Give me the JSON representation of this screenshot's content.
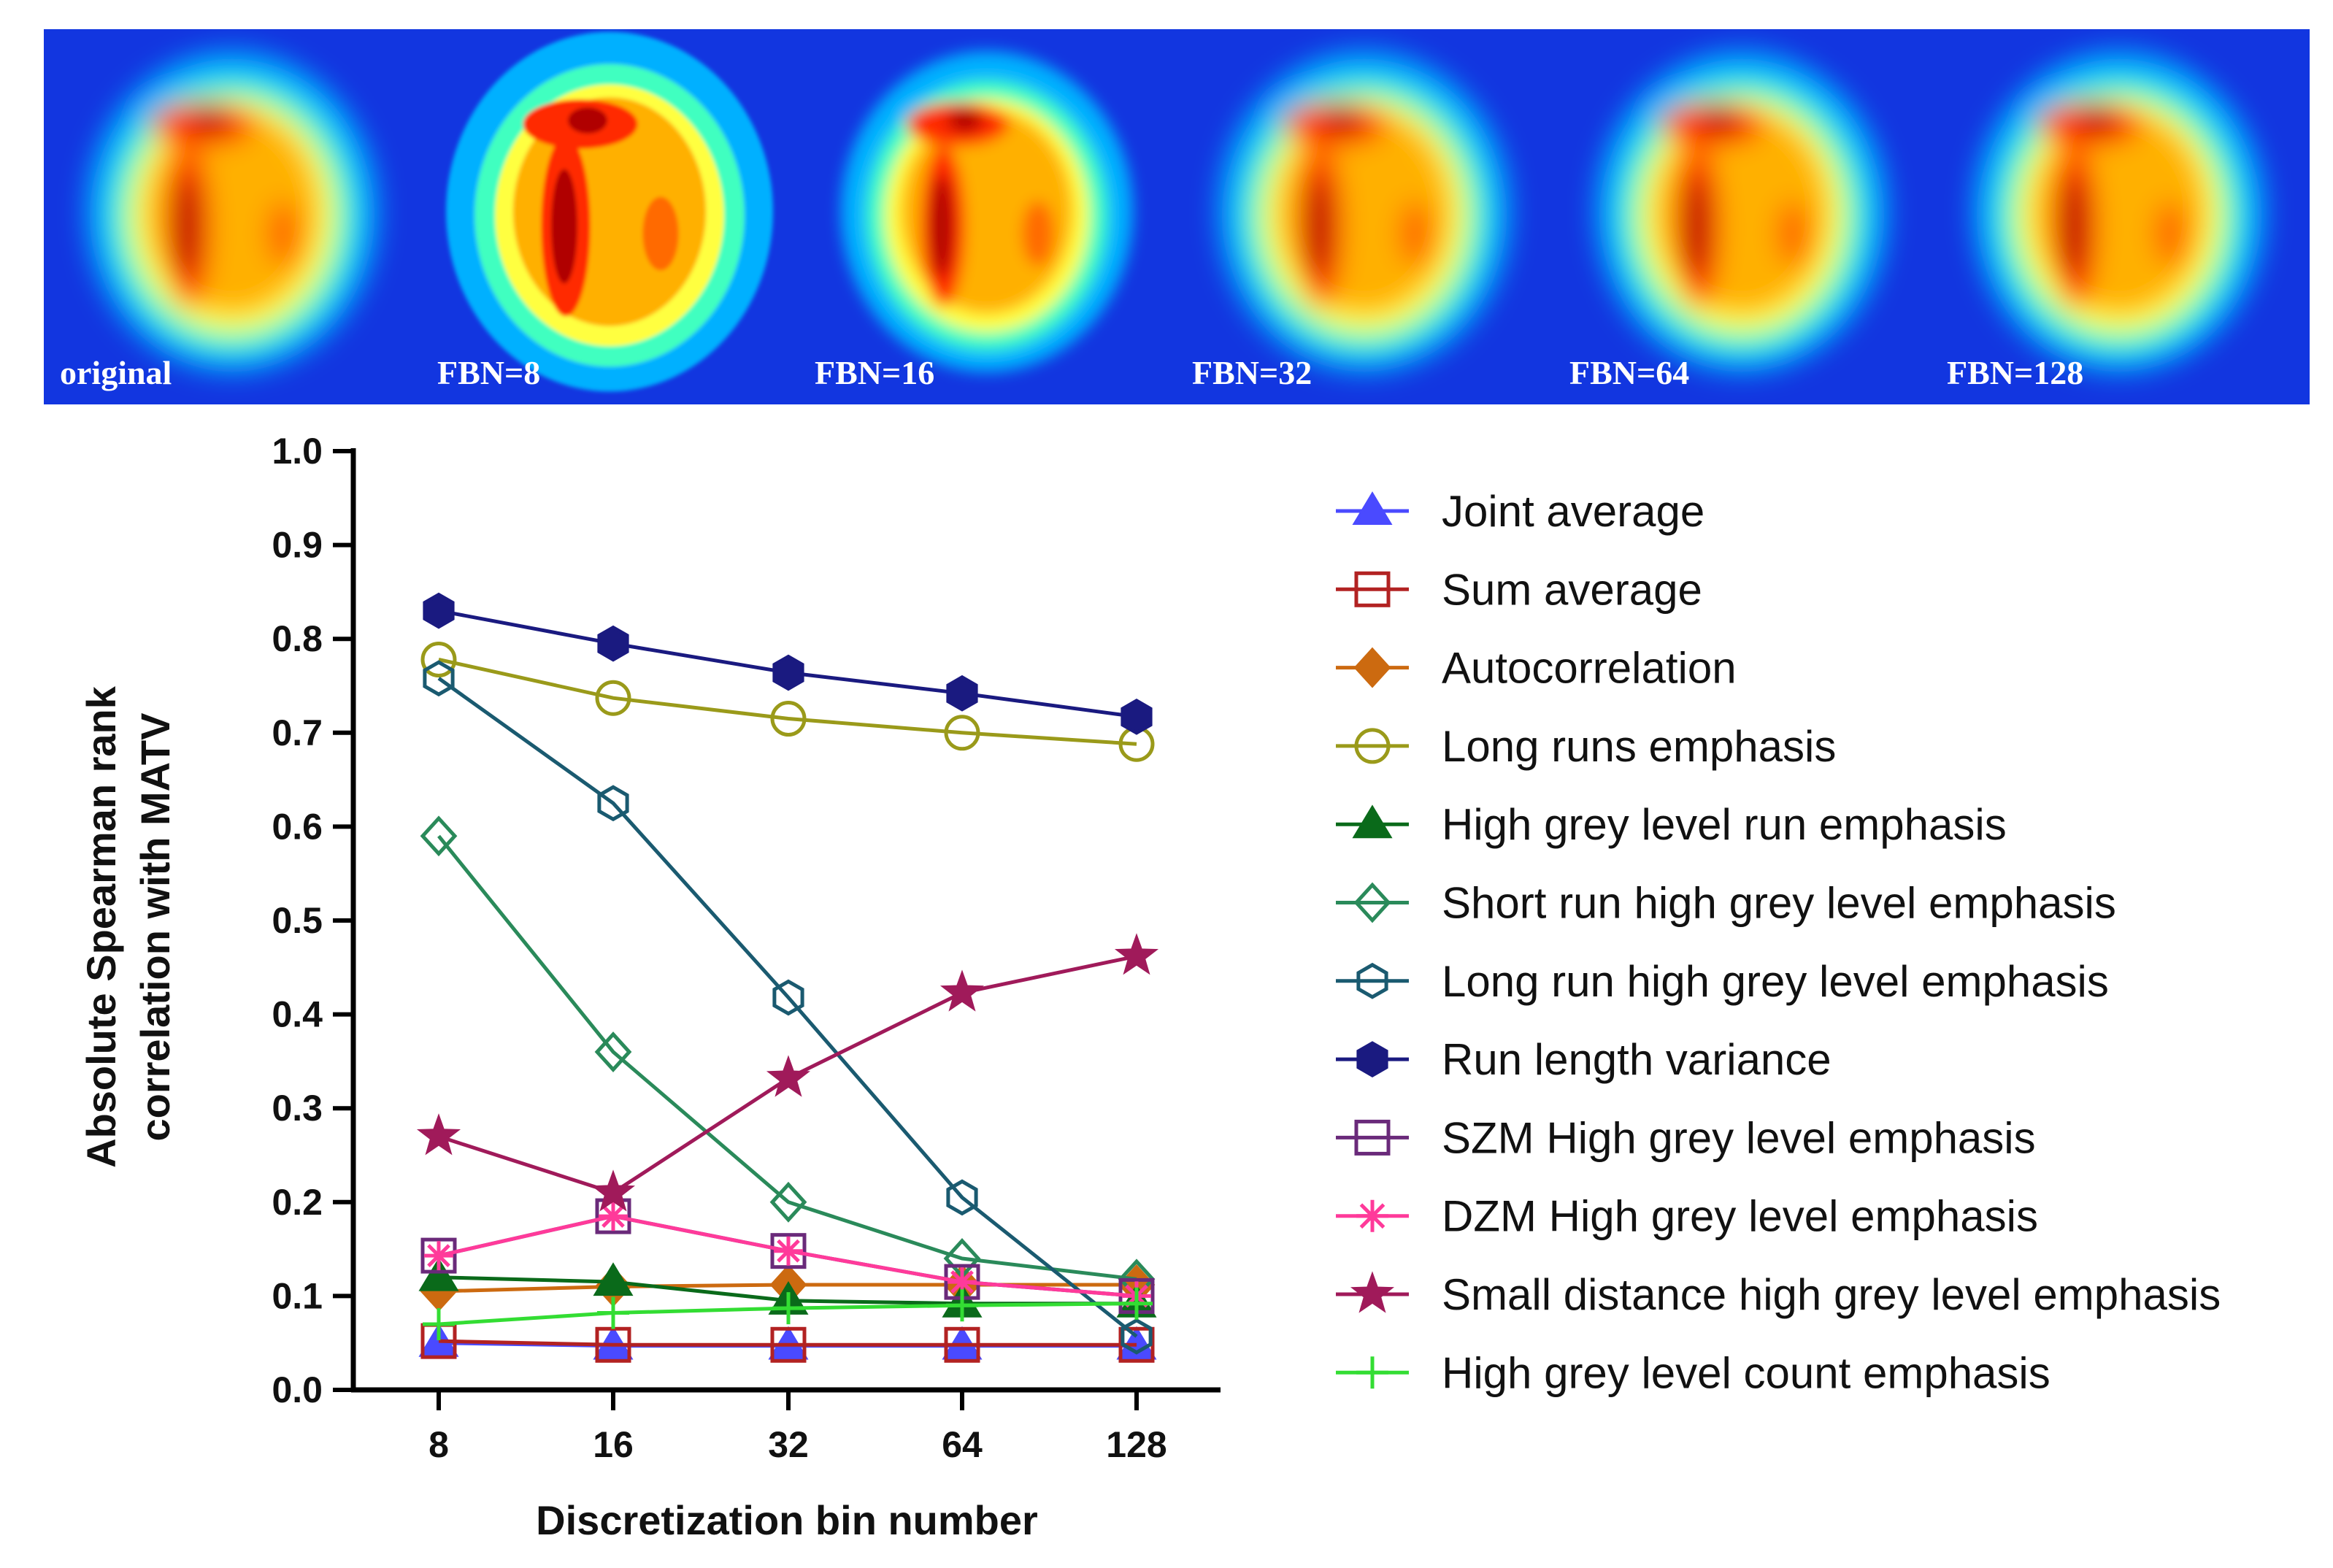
{
  "heatmap_panels": [
    {
      "label": "original",
      "kind": "smooth"
    },
    {
      "label": "FBN=8",
      "kind": "coarse"
    },
    {
      "label": "FBN=16",
      "kind": "medium"
    },
    {
      "label": "FBN=32",
      "kind": "fine"
    },
    {
      "label": "FBN=64",
      "kind": "fine"
    },
    {
      "label": "FBN=128",
      "kind": "smooth"
    }
  ],
  "chart_data": {
    "type": "line",
    "title": "",
    "xlabel": "Discretization bin number",
    "ylabel_lines": [
      "Absolute Spearman rank",
      "correlation with MATV"
    ],
    "categories": [
      "8",
      "16",
      "32",
      "64",
      "128"
    ],
    "ylim": [
      0,
      1.0
    ],
    "yticks": [
      "0.0",
      "0.1",
      "0.2",
      "0.3",
      "0.4",
      "0.5",
      "0.6",
      "0.7",
      "0.8",
      "0.9",
      "1.0"
    ],
    "legend_position": "right",
    "series": [
      {
        "name": "Joint average",
        "color": "#4a4aff",
        "marker": "triangle",
        "filled": true,
        "values": [
          0.05,
          0.047,
          0.047,
          0.047,
          0.047
        ]
      },
      {
        "name": "Sum average",
        "color": "#b22222",
        "marker": "square",
        "filled": false,
        "values": [
          0.052,
          0.048,
          0.048,
          0.048,
          0.048
        ]
      },
      {
        "name": "Autocorrelation",
        "color": "#cc6a10",
        "marker": "diamond",
        "filled": true,
        "values": [
          0.105,
          0.11,
          0.112,
          0.112,
          0.112
        ]
      },
      {
        "name": "Long runs emphasis",
        "color": "#9a9a1a",
        "marker": "circle",
        "filled": false,
        "values": [
          0.778,
          0.737,
          0.715,
          0.7,
          0.688
        ]
      },
      {
        "name": "High grey level run emphasis",
        "color": "#0a6a1a",
        "marker": "triangle",
        "filled": true,
        "values": [
          0.12,
          0.115,
          0.095,
          0.092,
          0.092
        ]
      },
      {
        "name": "Short run high grey level emphasis",
        "color": "#2a8a5a",
        "marker": "diamond",
        "filled": false,
        "values": [
          0.59,
          0.36,
          0.2,
          0.14,
          0.118
        ]
      },
      {
        "name": "Long run high grey level emphasis",
        "color": "#1a5a70",
        "marker": "hexagon",
        "filled": false,
        "values": [
          0.758,
          0.625,
          0.418,
          0.205,
          0.057
        ]
      },
      {
        "name": "Run length variance",
        "color": "#1a1a80",
        "marker": "hexagon",
        "filled": true,
        "values": [
          0.83,
          0.795,
          0.764,
          0.742,
          0.717
        ]
      },
      {
        "name": "SZM High grey level emphasis",
        "color": "#6a2a7a",
        "marker": "square",
        "filled": false,
        "values": [
          0.143,
          0.185,
          0.148,
          0.115,
          0.1
        ]
      },
      {
        "name": "DZM High grey level emphasis",
        "color": "#ff3a9a",
        "marker": "asterisk",
        "filled": false,
        "values": [
          0.143,
          0.185,
          0.148,
          0.115,
          0.1
        ]
      },
      {
        "name": "Small distance high grey level emphasis",
        "color": "#a01a5a",
        "marker": "star",
        "filled": true,
        "values": [
          0.27,
          0.21,
          0.332,
          0.423,
          0.462
        ]
      },
      {
        "name": "High grey level count emphasis",
        "color": "#33dd33",
        "marker": "plus",
        "filled": false,
        "values": [
          0.07,
          0.082,
          0.087,
          0.09,
          0.092
        ]
      }
    ]
  }
}
